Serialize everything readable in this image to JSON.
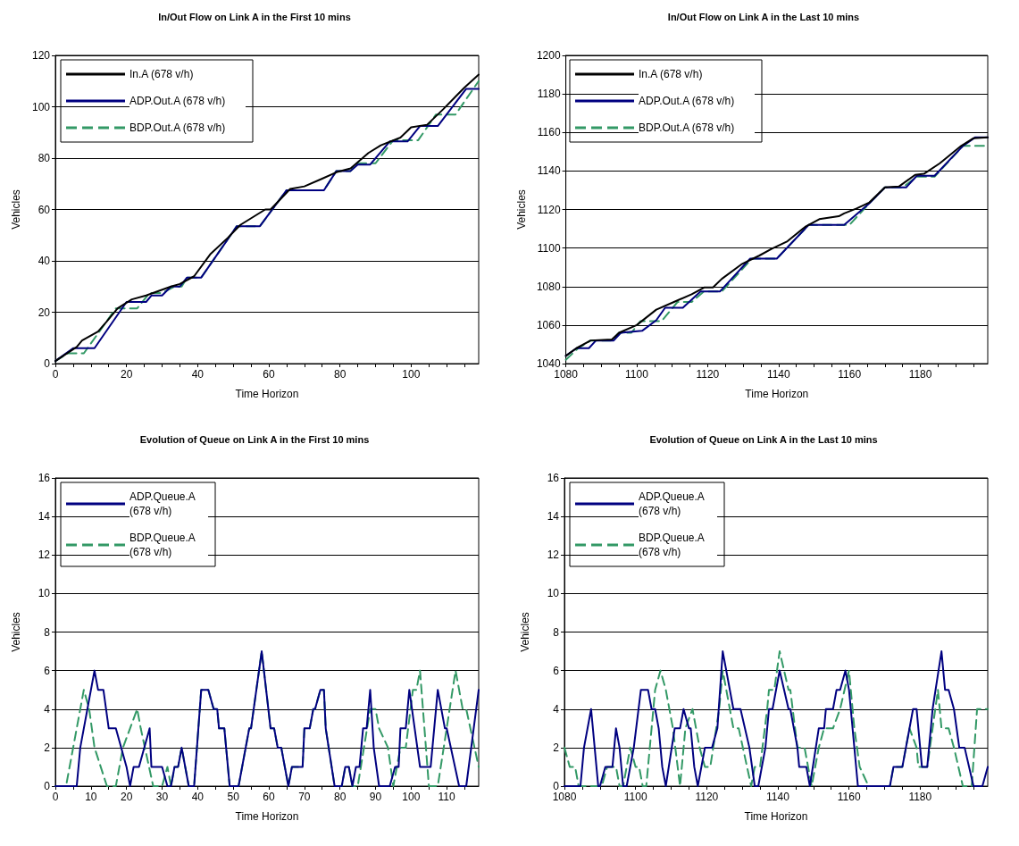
{
  "chart_data": [
    {
      "type": "line",
      "title": "In/Out Flow on Link A in the First 10 mins",
      "xlabel": "Time Horizon",
      "ylabel": "Vehicles",
      "xlim": [
        0,
        119
      ],
      "ylim": [
        0,
        120
      ],
      "xticks": [
        0,
        {
          "value": 5,
          "label": null
        },
        {
          "value": 10,
          "label": null
        },
        {
          "value": 15,
          "label": null
        },
        20,
        {
          "value": 25,
          "label": null
        },
        {
          "value": 30,
          "label": null
        },
        {
          "value": 35,
          "label": null
        },
        40,
        {
          "value": 45,
          "label": null
        },
        {
          "value": 50,
          "label": null
        },
        {
          "value": 55,
          "label": null
        },
        60,
        {
          "value": 65,
          "label": null
        },
        {
          "value": 70,
          "label": null
        },
        {
          "value": 75,
          "label": null
        },
        80,
        {
          "value": 85,
          "label": null
        },
        {
          "value": 90,
          "label": null
        },
        {
          "value": 95,
          "label": null
        },
        100,
        {
          "value": 105,
          "label": null
        },
        {
          "value": 110,
          "label": null
        },
        {
          "value": 115,
          "label": null
        }
      ],
      "yticks": [
        0,
        20,
        40,
        60,
        80,
        100,
        120
      ],
      "grid": "y",
      "legend": "top left",
      "marker": "none",
      "series": [
        {
          "name": "In.A (678 v/h)",
          "color": "#000000",
          "line_style": "solid",
          "x": [
            0,
            6,
            7.5,
            12,
            14.5,
            17.5,
            21.5,
            25.5,
            32.5,
            35,
            39,
            43.5,
            48.5,
            52,
            59,
            60.5,
            66,
            70,
            75,
            79,
            83,
            88,
            91.5,
            97,
            100,
            104.5,
            109,
            115,
            119
          ],
          "values": [
            1,
            6.5,
            9,
            12.5,
            16.5,
            21.5,
            25,
            26.5,
            30,
            31,
            34,
            42.5,
            49,
            54,
            60,
            60,
            68,
            69,
            72,
            74.5,
            76,
            82,
            85,
            88,
            92,
            93,
            99,
            107.5,
            112.5
          ]
        },
        {
          "name": "ADP.Out.A (678 v/h)",
          "color": "#000080",
          "line_style": "solid",
          "x": [
            0,
            5,
            11,
            20,
            25.5,
            27,
            30,
            32.5,
            35,
            37,
            41,
            51,
            57.5,
            65,
            75.5,
            79,
            83,
            85,
            88.5,
            94,
            99,
            102.5,
            107.5,
            115.5,
            119
          ],
          "values": [
            1,
            6,
            6,
            24,
            24,
            26.5,
            26.5,
            30,
            30,
            33.5,
            33.5,
            53.5,
            53.5,
            67.5,
            67.5,
            75,
            75,
            77.5,
            77.5,
            86.5,
            86.5,
            92.5,
            92.5,
            107,
            107
          ]
        },
        {
          "name": "BDP.Out.A (678 v/h)",
          "color": "#339966",
          "line_style": "dashed",
          "x": [
            0,
            3.5,
            8,
            17,
            23,
            26.5,
            30,
            33.5,
            35.5,
            37,
            41,
            51,
            57.5,
            65,
            75.5,
            79,
            83,
            85,
            90,
            95,
            102,
            107,
            112.5,
            119
          ],
          "values": [
            1,
            4,
            4,
            21.5,
            21.5,
            27.5,
            27.5,
            30,
            30,
            33.5,
            33.5,
            53.5,
            53.5,
            67.5,
            67.5,
            75,
            75,
            78,
            78,
            87,
            87,
            97,
            97,
            110
          ]
        }
      ]
    },
    {
      "type": "line",
      "title": "In/Out Flow on Link A in the Last 10 mins",
      "xlabel": "Time Horizon",
      "ylabel": "Vehicles",
      "xlim": [
        1080,
        1199
      ],
      "ylim": [
        1040,
        1200
      ],
      "xticks": [
        1080,
        {
          "value": 1085,
          "label": null
        },
        {
          "value": 1090,
          "label": null
        },
        {
          "value": 1095,
          "label": null
        },
        1100,
        {
          "value": 1105,
          "label": null
        },
        {
          "value": 1110,
          "label": null
        },
        {
          "value": 1115,
          "label": null
        },
        1120,
        {
          "value": 1125,
          "label": null
        },
        {
          "value": 1130,
          "label": null
        },
        {
          "value": 1135,
          "label": null
        },
        1140,
        {
          "value": 1145,
          "label": null
        },
        {
          "value": 1150,
          "label": null
        },
        {
          "value": 1155,
          "label": null
        },
        1160,
        {
          "value": 1165,
          "label": null
        },
        {
          "value": 1170,
          "label": null
        },
        {
          "value": 1175,
          "label": null
        },
        1180,
        {
          "value": 1185,
          "label": null
        },
        {
          "value": 1190,
          "label": null
        },
        {
          "value": 1195,
          "label": null
        }
      ],
      "yticks": [
        1040,
        1060,
        1080,
        1100,
        1120,
        1140,
        1160,
        1180,
        1200
      ],
      "grid": "y",
      "legend": "top left",
      "marker": "none",
      "series": [
        {
          "name": "In.A (678 v/h)",
          "color": "#000000",
          "line_style": "solid",
          "x": [
            1080,
            1083,
            1087,
            1093,
            1095,
            1100,
            1105.5,
            1110.5,
            1115.5,
            1119,
            1121.5,
            1124,
            1129.5,
            1134.5,
            1138,
            1142.5,
            1147.5,
            1151.5,
            1157,
            1158.5,
            1162,
            1165.5,
            1170,
            1174,
            1178.5,
            1181,
            1185.5,
            1191.5,
            1195,
            1199
          ],
          "values": [
            1044,
            1048,
            1052,
            1052.5,
            1056,
            1060,
            1068,
            1072,
            1076,
            1079.5,
            1079.5,
            1084,
            1091.5,
            1096,
            1099.5,
            1103.5,
            1111,
            1115,
            1116.5,
            1118,
            1120.5,
            1123.5,
            1131.5,
            1132,
            1138,
            1138.5,
            1144,
            1153,
            1157,
            1157.5
          ]
        },
        {
          "name": "ADP.Out.A (678 v/h)",
          "color": "#000080",
          "line_style": "solid",
          "x": [
            1080,
            1083,
            1086.5,
            1088.5,
            1093.5,
            1095.5,
            1101.5,
            1105.5,
            1108,
            1113,
            1118,
            1123.5,
            1132,
            1139.5,
            1148.5,
            1158.5,
            1165.5,
            1170,
            1176,
            1179,
            1184,
            1192,
            1195.5,
            1199
          ],
          "values": [
            1044,
            1048,
            1048,
            1052,
            1052,
            1056,
            1057,
            1062.5,
            1069,
            1069,
            1077.5,
            1077.5,
            1094.5,
            1094.5,
            1112,
            1112,
            1123,
            1131.5,
            1131.5,
            1137.5,
            1137.5,
            1153,
            1157.5,
            1157.5
          ]
        },
        {
          "name": "BDP.Out.A (678 v/h)",
          "color": "#339966",
          "line_style": "dashed",
          "x": [
            1080,
            1083.5,
            1087,
            1093,
            1095,
            1098.5,
            1101,
            1107,
            1111.5,
            1115.5,
            1119,
            1124,
            1132.5,
            1139.5,
            1148.5,
            1160,
            1165.5,
            1170,
            1175,
            1179,
            1184,
            1192,
            1199
          ],
          "values": [
            1042,
            1048,
            1052,
            1052,
            1056,
            1056,
            1062,
            1062,
            1072,
            1072,
            1077.5,
            1077.5,
            1094.5,
            1094.5,
            1112,
            1112,
            1123,
            1131.5,
            1131.5,
            1137,
            1137,
            1153,
            1153
          ]
        }
      ]
    },
    {
      "type": "line",
      "title": "Evolution of Queue on Link A in the First 10 mins",
      "xlabel": "Time Horizon",
      "ylabel": "Vehicles",
      "xlim": [
        0,
        119
      ],
      "ylim": [
        0,
        16
      ],
      "xticks": [
        0,
        {
          "value": 5,
          "label": null
        },
        10,
        {
          "value": 15,
          "label": null
        },
        20,
        {
          "value": 25,
          "label": null
        },
        30,
        {
          "value": 35,
          "label": null
        },
        40,
        {
          "value": 45,
          "label": null
        },
        50,
        {
          "value": 55,
          "label": null
        },
        60,
        {
          "value": 65,
          "label": null
        },
        70,
        {
          "value": 75,
          "label": null
        },
        80,
        {
          "value": 85,
          "label": null
        },
        90,
        {
          "value": 95,
          "label": null
        },
        100,
        {
          "value": 105,
          "label": null
        },
        110,
        {
          "value": 115,
          "label": null
        }
      ],
      "yticks": [
        0,
        2,
        4,
        6,
        8,
        10,
        12,
        14,
        16
      ],
      "grid": "y",
      "legend": "top left",
      "marker": "none",
      "series": [
        {
          "name": "ADP.Queue.A (678 v/h)",
          "color": "#000080",
          "line_style": "solid",
          "x": [
            0,
            6,
            7,
            11,
            12,
            13.5,
            15,
            17,
            20,
            21,
            22,
            23.5,
            26.5,
            27,
            30,
            31.5,
            32.5,
            33.5,
            34.5,
            35.5,
            37.5,
            39,
            41,
            43,
            44.5,
            45.5,
            46,
            47.5,
            49,
            51.5,
            54.5,
            55,
            56.5,
            58,
            60.5,
            61.5,
            62.5,
            63.5,
            65.5,
            66.5,
            69.5,
            70,
            71.5,
            72.5,
            73,
            74.5,
            75.5,
            76,
            78.5,
            80.5,
            81.5,
            82.5,
            83.5,
            84.5,
            85.5,
            86.5,
            87.5,
            88.5,
            89.5,
            91,
            94,
            95.5,
            96.5,
            97,
            98.5,
            99.5,
            102.5,
            105.5,
            107.5,
            109.5,
            110,
            113.5,
            115.5,
            119
          ],
          "values": [
            0,
            0,
            2,
            6,
            5,
            5,
            3,
            3,
            1,
            0,
            1,
            1,
            3,
            1,
            1,
            0,
            0,
            1,
            1,
            2,
            0,
            0,
            5,
            5,
            4,
            4,
            3,
            3,
            0,
            0,
            3,
            3,
            5,
            7,
            3,
            3,
            2,
            2,
            0,
            1,
            1,
            3,
            3,
            4,
            4,
            5,
            5,
            3,
            0,
            0,
            1,
            1,
            0,
            1,
            1,
            3,
            3,
            5,
            2,
            0,
            0,
            1,
            1,
            3,
            3,
            5,
            1,
            1,
            5,
            3,
            3,
            0,
            0,
            5
          ]
        },
        {
          "name": "BDP.Queue.A (678 v/h)",
          "color": "#339966",
          "line_style": "dashed",
          "x": [
            0,
            3,
            8,
            9.5,
            11,
            14.5,
            17,
            19,
            21,
            23,
            24,
            27.5,
            30,
            31.5,
            32.5,
            33.5,
            34.5,
            35.5,
            37.5,
            39,
            41,
            43,
            44.5,
            45.5,
            46,
            47.5,
            49,
            51.5,
            54.5,
            55,
            56.5,
            58,
            60.5,
            61.5,
            62.5,
            63.5,
            65.5,
            66.5,
            69.5,
            70,
            71.5,
            72.5,
            73,
            74.5,
            75.5,
            76,
            78.5,
            80.5,
            81.5,
            82.5,
            83.5,
            85,
            88.5,
            90,
            91,
            93.5,
            95,
            97,
            98.5,
            100.5,
            101.5,
            102.5,
            105,
            107.5,
            110,
            112.5,
            114.5,
            115.5,
            119
          ],
          "values": [
            0,
            0,
            5,
            4,
            2,
            0,
            0,
            2,
            3,
            4,
            3,
            0,
            0,
            1,
            0,
            1,
            1,
            2,
            0,
            0,
            5,
            5,
            4,
            4,
            3,
            3,
            0,
            0,
            3,
            3,
            5,
            7,
            3,
            3,
            2,
            2,
            0,
            1,
            1,
            3,
            3,
            4,
            4,
            5,
            5,
            3,
            0,
            0,
            1,
            1,
            0,
            0,
            4,
            4,
            3,
            2,
            0,
            2,
            2,
            5,
            5,
            6,
            0,
            0,
            3,
            6,
            4,
            4,
            1
          ]
        }
      ]
    },
    {
      "type": "line",
      "title": "Evolution of Queue on Link A in the Last 10 mins",
      "xlabel": "Time Horizon",
      "ylabel": "Vehicles",
      "xlim": [
        1080,
        1199
      ],
      "ylim": [
        0,
        16
      ],
      "xticks": [
        1080,
        {
          "value": 1085,
          "label": null
        },
        {
          "value": 1090,
          "label": null
        },
        {
          "value": 1095,
          "label": null
        },
        1100,
        {
          "value": 1105,
          "label": null
        },
        {
          "value": 1110,
          "label": null
        },
        {
          "value": 1115,
          "label": null
        },
        1120,
        {
          "value": 1125,
          "label": null
        },
        {
          "value": 1130,
          "label": null
        },
        {
          "value": 1135,
          "label": null
        },
        1140,
        {
          "value": 1145,
          "label": null
        },
        {
          "value": 1150,
          "label": null
        },
        {
          "value": 1155,
          "label": null
        },
        1160,
        {
          "value": 1165,
          "label": null
        },
        {
          "value": 1170,
          "label": null
        },
        {
          "value": 1175,
          "label": null
        },
        1180,
        {
          "value": 1185,
          "label": null
        },
        {
          "value": 1190,
          "label": null
        },
        {
          "value": 1195,
          "label": null
        }
      ],
      "yticks": [
        0,
        2,
        4,
        6,
        8,
        10,
        12,
        14,
        16
      ],
      "grid": "y",
      "legend": "top left",
      "marker": "none",
      "series": [
        {
          "name": "ADP.Queue.A (678 v/h)",
          "color": "#000080",
          "line_style": "solid",
          "x": [
            1080,
            1084.5,
            1085.5,
            1087.5,
            1089.5,
            1090,
            1091.5,
            1093.5,
            1094.5,
            1095.5,
            1096.5,
            1097.5,
            1099.5,
            1101.5,
            1103.5,
            1104.5,
            1105.5,
            1106.5,
            1107.5,
            1108.5,
            1111,
            1112.5,
            1113.5,
            1115,
            1115.5,
            1116.5,
            1117.5,
            1119.5,
            1121.5,
            1123,
            1124.5,
            1127.5,
            1129.5,
            1132,
            1133.5,
            1134.5,
            1136.5,
            1137.5,
            1138.5,
            1140.5,
            1143,
            1143.5,
            1145.5,
            1146,
            1148,
            1149,
            1151.5,
            1153,
            1153.5,
            1155.5,
            1156.5,
            1157.5,
            1159,
            1160,
            1162.5,
            1171.5,
            1172.5,
            1175,
            1176,
            1178,
            1179,
            1179.5,
            1180.5,
            1182,
            1183.5,
            1186,
            1187,
            1188,
            1189.5,
            1191,
            1192.5,
            1195,
            1197.5,
            1199
          ],
          "values": [
            0,
            0,
            2,
            4,
            0,
            0,
            1,
            1,
            3,
            2,
            0,
            0,
            2,
            5,
            5,
            4,
            4,
            3,
            1,
            0,
            3,
            3,
            4,
            3,
            3,
            1,
            0,
            2,
            2,
            3,
            7,
            4,
            4,
            2,
            0,
            0,
            2,
            4,
            4,
            6,
            4,
            4,
            2,
            1,
            1,
            0,
            3,
            3,
            4,
            4,
            5,
            5,
            6,
            5,
            0,
            0,
            1,
            1,
            2,
            4,
            4,
            3,
            1,
            1,
            4,
            7,
            5,
            5,
            4,
            2,
            2,
            0,
            0,
            1
          ]
        },
        {
          "name": "BDP.Queue.A (678 v/h)",
          "color": "#339966",
          "line_style": "dashed",
          "x": [
            1080,
            1081.5,
            1083,
            1084,
            1087,
            1089.5,
            1090.5,
            1092,
            1094.5,
            1095.5,
            1096.5,
            1098.5,
            1100,
            1101,
            1102,
            1103,
            1105.5,
            1107,
            1108.5,
            1110.5,
            1112.5,
            1114,
            1116,
            1118,
            1119.5,
            1121,
            1123.5,
            1124.5,
            1127.5,
            1129,
            1132.5,
            1133.5,
            1135,
            1137,
            1137.5,
            1139,
            1140.5,
            1143,
            1143.5,
            1145.5,
            1147.5,
            1149.5,
            1151.5,
            1153,
            1155.5,
            1157.5,
            1160,
            1161.5,
            1163,
            1165.5,
            1171.5,
            1172.5,
            1175,
            1177,
            1179,
            1179.5,
            1182,
            1183.5,
            1185,
            1186,
            1188,
            1189.5,
            1192,
            1194.5,
            1196,
            1199
          ],
          "values": [
            2,
            1,
            1,
            0,
            0,
            0,
            0,
            1,
            1,
            0,
            0,
            2,
            1,
            1,
            0,
            0,
            5,
            6,
            5,
            3,
            0,
            3,
            4,
            2,
            1,
            1,
            4,
            6,
            3,
            3,
            0,
            1,
            1,
            4,
            5,
            5,
            7,
            5,
            5,
            2,
            2,
            0,
            2,
            3,
            3,
            4,
            6,
            3,
            1,
            0,
            0,
            1,
            1,
            3,
            2,
            1,
            1,
            3,
            5,
            3,
            3,
            2,
            0,
            0,
            4,
            4
          ]
        }
      ]
    }
  ]
}
